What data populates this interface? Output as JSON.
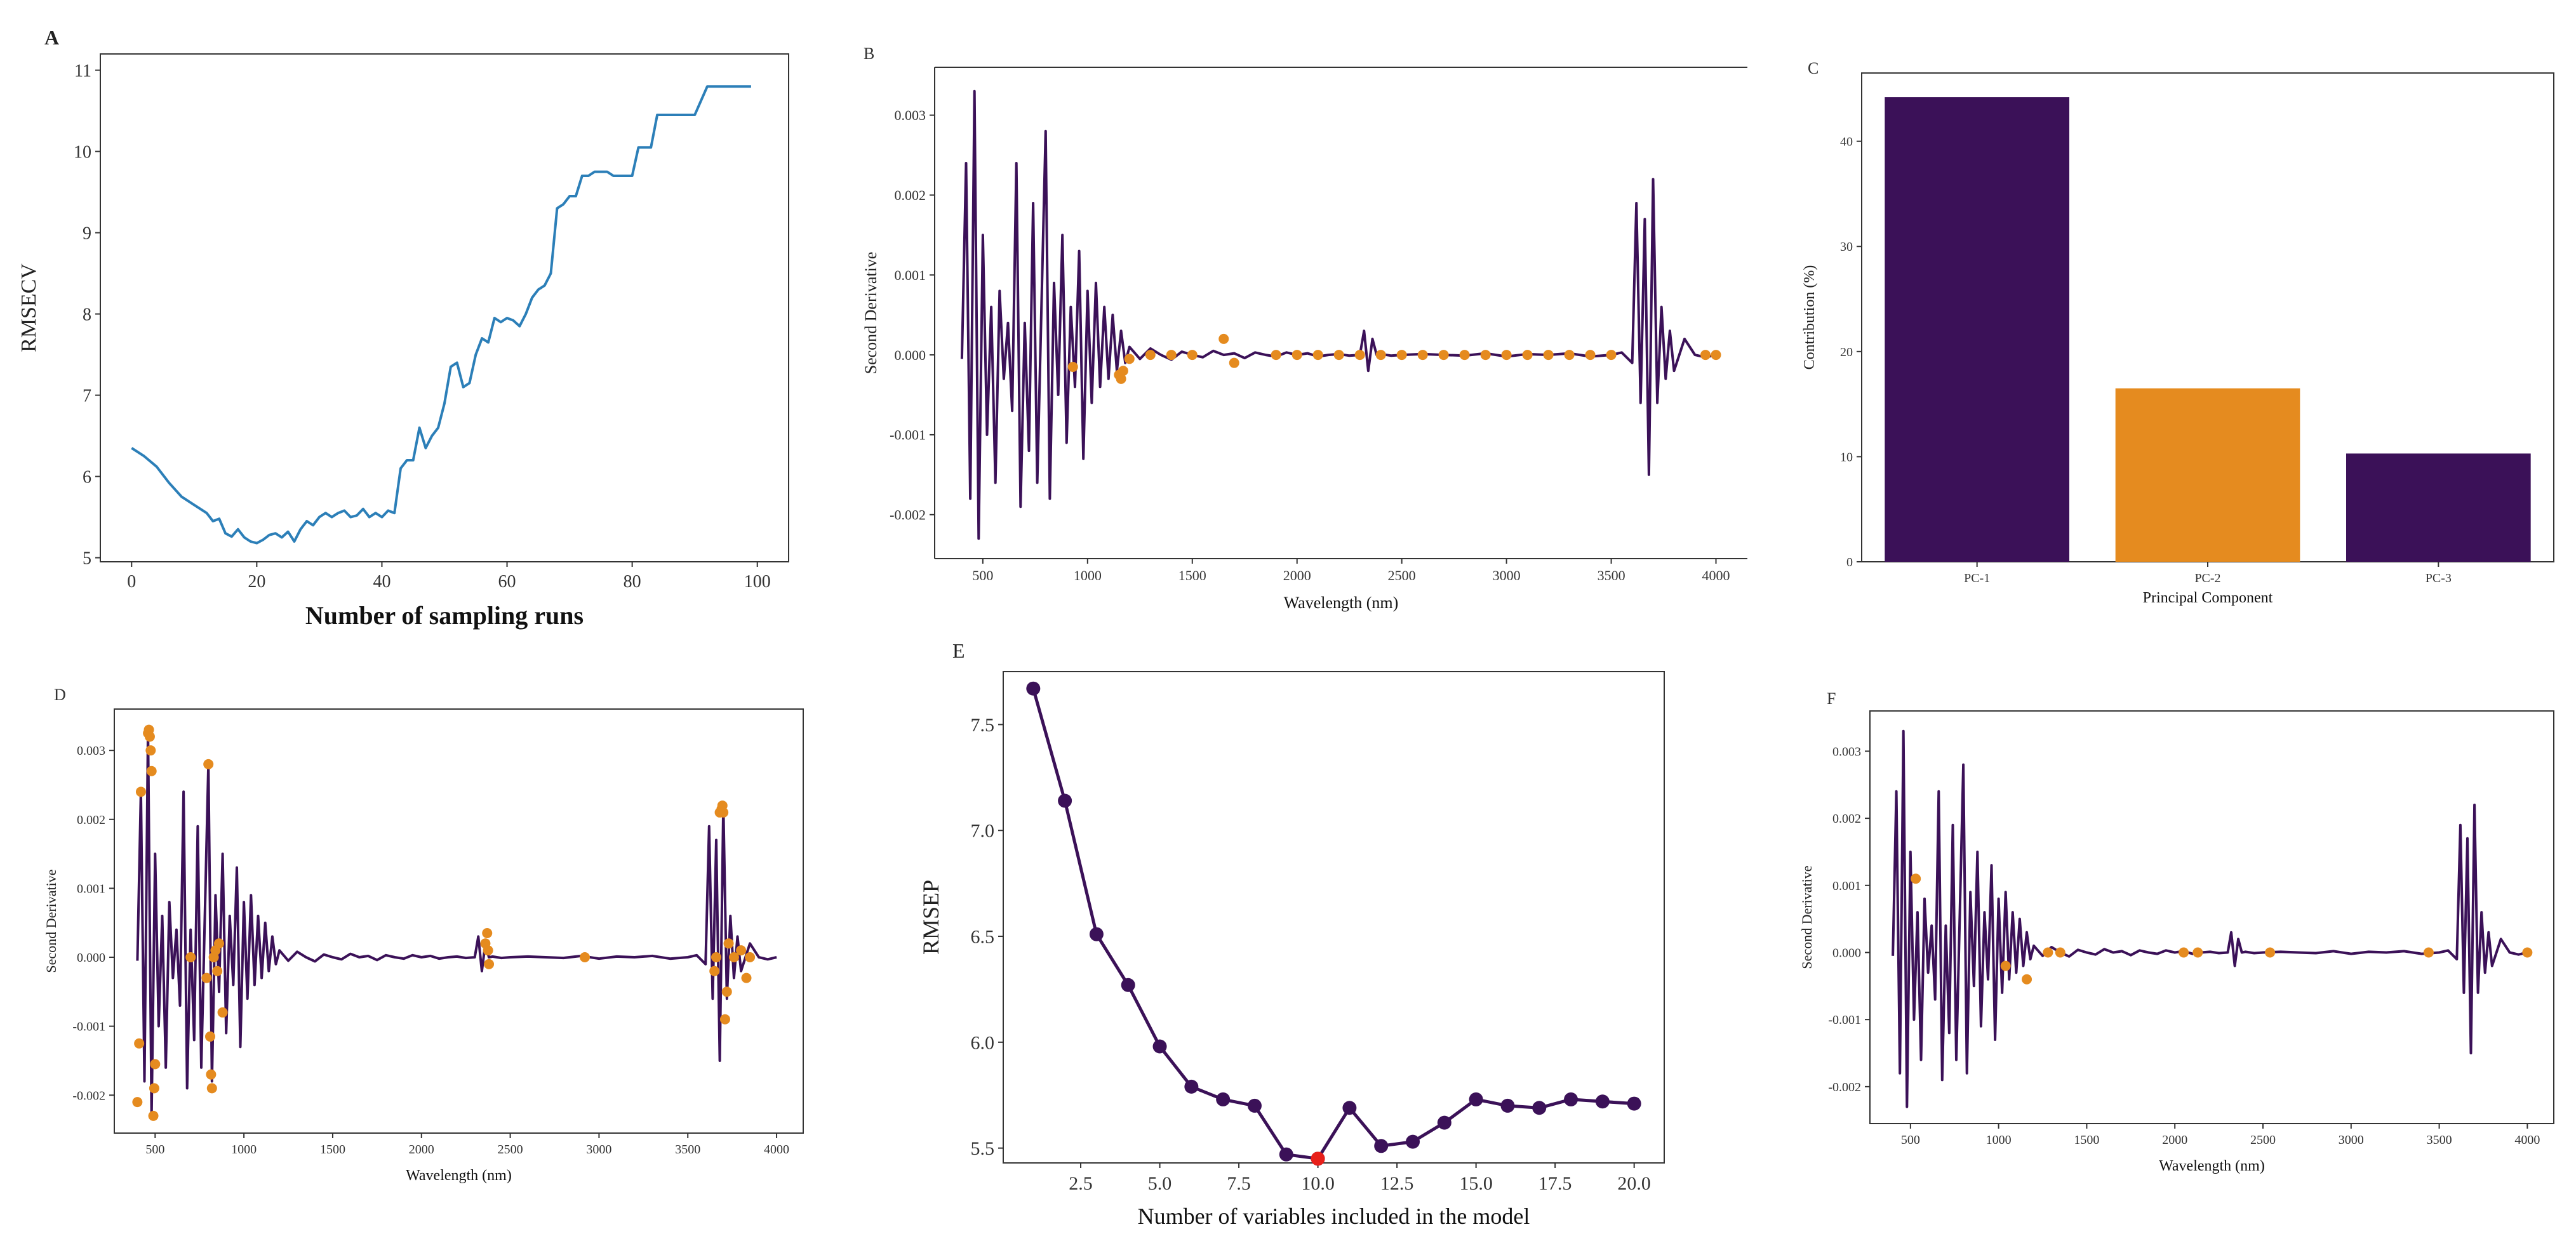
{
  "colors": {
    "purple": "#3b1158",
    "orange": "#e58b1f",
    "blue": "#2c7fb8",
    "red": "#e8201a",
    "axis": "#333333",
    "text": "#333333"
  },
  "chart_data": [
    {
      "panel": "A",
      "type": "line",
      "title": "",
      "xlabel": "Number of sampling runs",
      "ylabel": "RMSECV",
      "xlim": [
        -5,
        105
      ],
      "ylim": [
        4.95,
        11.2
      ],
      "xticks": [
        0,
        20,
        40,
        60,
        80,
        100
      ],
      "yticks": [
        5,
        6,
        7,
        8,
        9,
        10,
        11
      ],
      "series": [
        {
          "name": "RMSECV",
          "x": [
            0,
            2,
            4,
            6,
            8,
            10,
            12,
            13,
            14,
            15,
            16,
            17,
            18,
            19,
            20,
            21,
            22,
            23,
            24,
            25,
            26,
            27,
            28,
            29,
            30,
            31,
            32,
            33,
            34,
            35,
            36,
            37,
            38,
            39,
            40,
            41,
            42,
            43,
            44,
            45,
            46,
            47,
            48,
            49,
            50,
            51,
            52,
            53,
            54,
            55,
            56,
            57,
            58,
            59,
            60,
            61,
            62,
            63,
            64,
            65,
            66,
            67,
            68,
            69,
            70,
            71,
            72,
            73,
            74,
            75,
            76,
            77,
            78,
            79,
            80,
            81,
            82,
            83,
            84,
            85,
            86,
            88,
            90,
            92,
            93,
            94,
            95,
            96,
            97,
            98,
            99
          ],
          "y": [
            6.35,
            6.25,
            6.12,
            5.92,
            5.75,
            5.65,
            5.55,
            5.45,
            5.48,
            5.3,
            5.26,
            5.35,
            5.25,
            5.2,
            5.18,
            5.22,
            5.28,
            5.3,
            5.25,
            5.32,
            5.2,
            5.35,
            5.45,
            5.4,
            5.5,
            5.55,
            5.5,
            5.55,
            5.58,
            5.5,
            5.52,
            5.6,
            5.5,
            5.55,
            5.5,
            5.58,
            5.55,
            6.1,
            6.2,
            6.2,
            6.6,
            6.35,
            6.5,
            6.6,
            6.9,
            7.35,
            7.4,
            7.1,
            7.15,
            7.5,
            7.7,
            7.65,
            7.95,
            7.9,
            7.95,
            7.92,
            7.85,
            8.0,
            8.2,
            8.3,
            8.35,
            8.5,
            9.3,
            9.35,
            9.45,
            9.45,
            9.7,
            9.7,
            9.75,
            9.75,
            9.75,
            9.7,
            9.7,
            9.7,
            9.7,
            10.05,
            10.05,
            10.05,
            10.45,
            10.45,
            10.45,
            10.45,
            10.45,
            10.8,
            10.8,
            10.8,
            10.8,
            10.8,
            10.8,
            10.8,
            10.8
          ]
        }
      ]
    },
    {
      "panel": "B",
      "type": "line",
      "xlabel": "Wavelength (nm)",
      "ylabel": "Second Derivative",
      "xlim": [
        270,
        4150
      ],
      "ylim": [
        -0.00255,
        0.0036
      ],
      "xticks": [
        500,
        1000,
        1500,
        2000,
        2500,
        3000,
        3500,
        4000
      ],
      "yticks": [
        -0.002,
        -0.001,
        0.0,
        0.001,
        0.002,
        0.003
      ],
      "ytick_labels": [
        "-0.002",
        "-0.001",
        "0.000",
        "0.001",
        "0.002",
        "0.003"
      ],
      "markers_note": "selected wavelengths",
      "markers": [
        [
          930,
          -0.00015
        ],
        [
          1150,
          -0.00025
        ],
        [
          1160,
          -0.0003
        ],
        [
          1170,
          -0.0002
        ],
        [
          1200,
          -5e-05
        ],
        [
          1300,
          0.0
        ],
        [
          1400,
          0.0
        ],
        [
          1500,
          0.0
        ],
        [
          1650,
          0.0002
        ],
        [
          1700,
          -0.0001
        ],
        [
          1900,
          0.0
        ],
        [
          2000,
          0.0
        ],
        [
          2100,
          0.0
        ],
        [
          2200,
          0.0
        ],
        [
          2300,
          0.0
        ],
        [
          2400,
          0.0
        ],
        [
          2500,
          0.0
        ],
        [
          2600,
          0.0
        ],
        [
          2700,
          0.0
        ],
        [
          2800,
          0.0
        ],
        [
          2900,
          0.0
        ],
        [
          3000,
          0.0
        ],
        [
          3100,
          0.0
        ],
        [
          3200,
          0.0
        ],
        [
          3300,
          0.0
        ],
        [
          3400,
          0.0
        ],
        [
          3500,
          0.0
        ],
        [
          3950,
          0.0
        ],
        [
          4000,
          0.0
        ]
      ]
    },
    {
      "panel": "C",
      "type": "bar",
      "title": "",
      "xlabel": "Principal Component",
      "ylabel": "Contribution (%)",
      "categories": [
        "PC-1",
        "PC-2",
        "PC-3"
      ],
      "values": [
        44.2,
        16.5,
        10.3
      ],
      "bar_colors": [
        "purple",
        "orange",
        "purple"
      ],
      "ylim": [
        0,
        46.5
      ],
      "yticks": [
        0,
        10,
        20,
        30,
        40
      ]
    },
    {
      "panel": "D",
      "type": "line",
      "xlabel": "Wavelength (nm)",
      "ylabel": "Second Derivative",
      "xlim": [
        270,
        4150
      ],
      "ylim": [
        -0.00255,
        0.0036
      ],
      "xticks": [
        500,
        1000,
        1500,
        2000,
        2500,
        3000,
        3500,
        4000
      ],
      "yticks": [
        -0.002,
        -0.001,
        0.0,
        0.001,
        0.002,
        0.003
      ],
      "ytick_labels": [
        "-0.002",
        "-0.001",
        "0.000",
        "0.001",
        "0.002",
        "0.003"
      ],
      "markers": [
        [
          400,
          -0.0021
        ],
        [
          410,
          -0.00125
        ],
        [
          420,
          0.0024
        ],
        [
          460,
          0.00325
        ],
        [
          465,
          0.0033
        ],
        [
          470,
          0.0032
        ],
        [
          475,
          0.003
        ],
        [
          480,
          0.0027
        ],
        [
          490,
          -0.0023
        ],
        [
          495,
          -0.0019
        ],
        [
          500,
          -0.00155
        ],
        [
          700,
          0.0
        ],
        [
          790,
          -0.0003
        ],
        [
          800,
          0.0028
        ],
        [
          810,
          -0.00115
        ],
        [
          815,
          -0.0017
        ],
        [
          820,
          -0.0019
        ],
        [
          830,
          0.0
        ],
        [
          840,
          0.0001
        ],
        [
          850,
          -0.0002
        ],
        [
          860,
          0.0002
        ],
        [
          880,
          -0.0008
        ],
        [
          2360,
          0.0002
        ],
        [
          2370,
          0.00035
        ],
        [
          2375,
          0.0001
        ],
        [
          2380,
          -0.0001
        ],
        [
          2920,
          0.0
        ],
        [
          3650,
          -0.0002
        ],
        [
          3660,
          0.0
        ],
        [
          3680,
          0.0021
        ],
        [
          3690,
          0.00215
        ],
        [
          3695,
          0.0022
        ],
        [
          3700,
          0.0021
        ],
        [
          3710,
          -0.0009
        ],
        [
          3720,
          -0.0005
        ],
        [
          3730,
          0.0002
        ],
        [
          3760,
          0.0
        ],
        [
          3800,
          0.0001
        ],
        [
          3830,
          -0.0003
        ],
        [
          3850,
          0.0
        ]
      ]
    },
    {
      "panel": "E",
      "type": "line",
      "xlabel": "Number of variables included in the model",
      "ylabel": "RMSEP",
      "xlim": [
        0.05,
        20.95
      ],
      "ylim": [
        5.43,
        7.75
      ],
      "xticks": [
        2.5,
        5.0,
        7.5,
        10.0,
        12.5,
        15.0,
        17.5,
        20.0
      ],
      "xtick_labels": [
        "2.5",
        "5.0",
        "7.5",
        "10.0",
        "12.5",
        "15.0",
        "17.5",
        "20.0"
      ],
      "yticks": [
        5.5,
        6.0,
        6.5,
        7.0,
        7.5
      ],
      "ytick_labels": [
        "5.5",
        "6.0",
        "6.5",
        "7.0",
        "7.5"
      ],
      "series": [
        {
          "name": "RMSEP",
          "x": [
            1,
            2,
            3,
            4,
            5,
            6,
            7,
            8,
            9,
            10,
            11,
            12,
            13,
            14,
            15,
            16,
            17,
            18,
            19,
            20
          ],
          "y": [
            7.67,
            7.14,
            6.51,
            6.27,
            5.98,
            5.79,
            5.73,
            5.7,
            5.47,
            5.45,
            5.69,
            5.51,
            5.53,
            5.62,
            5.73,
            5.7,
            5.69,
            5.73,
            5.72,
            5.71
          ]
        }
      ],
      "highlight": {
        "x": 10,
        "y": 5.45
      }
    },
    {
      "panel": "F",
      "type": "line",
      "xlabel": "Wavelength (nm)",
      "ylabel": "Second Derivative",
      "xlim": [
        270,
        4150
      ],
      "ylim": [
        -0.00255,
        0.0036
      ],
      "xticks": [
        500,
        1000,
        1500,
        2000,
        2500,
        3000,
        3500,
        4000
      ],
      "yticks": [
        -0.002,
        -0.001,
        0.0,
        0.001,
        0.002,
        0.003
      ],
      "ytick_labels": [
        "-0.002",
        "-0.001",
        "0.000",
        "0.001",
        "0.002",
        "0.003"
      ],
      "markers": [
        [
          530,
          0.0011
        ],
        [
          1040,
          -0.0002
        ],
        [
          1160,
          -0.0004
        ],
        [
          1280,
          0.0
        ],
        [
          1350,
          0.0
        ],
        [
          2050,
          0.0
        ],
        [
          2130,
          0.0
        ],
        [
          2540,
          0.0
        ],
        [
          3440,
          0.0
        ],
        [
          4000,
          0.0
        ]
      ]
    }
  ],
  "spectrum": {
    "x": [
      400,
      420,
      440,
      460,
      480,
      500,
      520,
      540,
      560,
      580,
      600,
      620,
      640,
      660,
      680,
      700,
      720,
      740,
      760,
      780,
      800,
      820,
      840,
      860,
      880,
      900,
      920,
      940,
      960,
      980,
      1000,
      1020,
      1040,
      1060,
      1080,
      1100,
      1120,
      1140,
      1160,
      1180,
      1200,
      1250,
      1300,
      1350,
      1400,
      1450,
      1500,
      1550,
      1600,
      1650,
      1700,
      1750,
      1800,
      1850,
      1900,
      1950,
      2000,
      2050,
      2100,
      2150,
      2200,
      2250,
      2300,
      2320,
      2340,
      2360,
      2380,
      2400,
      2450,
      2500,
      2600,
      2700,
      2800,
      2900,
      3000,
      3100,
      3200,
      3300,
      3400,
      3500,
      3550,
      3600,
      3620,
      3640,
      3660,
      3680,
      3700,
      3720,
      3740,
      3760,
      3780,
      3800,
      3850,
      3900,
      3950,
      4000
    ],
    "y": [
      -5e-05,
      0.0024,
      -0.0018,
      0.0033,
      -0.0023,
      0.0015,
      -0.001,
      0.0006,
      -0.0016,
      0.0008,
      -0.0003,
      0.0004,
      -0.0007,
      0.0024,
      -0.0019,
      0.0004,
      -0.0012,
      0.0019,
      -0.0016,
      0.0006,
      0.0028,
      -0.0018,
      0.0009,
      -0.0005,
      0.0015,
      -0.0011,
      0.0006,
      -0.0004,
      0.0013,
      -0.0013,
      0.0008,
      -0.0006,
      0.0009,
      -0.0004,
      0.0006,
      -0.0003,
      0.0005,
      -0.0002,
      0.0003,
      -0.0001,
      0.0001,
      -5e-05,
      8e-05,
      0.0,
      -6e-05,
      4e-05,
      0.0,
      -3e-05,
      5e-05,
      0.0,
      2e-05,
      -4e-05,
      3e-05,
      0.0,
      -2e-05,
      3e-05,
      0.0,
      2e-05,
      -2e-05,
      0.0,
      1e-05,
      -1e-05,
      0.0,
      0.0003,
      -0.0002,
      0.0002,
      0.0,
      1e-05,
      -1e-05,
      0.0,
      1e-05,
      0.0,
      -1e-05,
      2e-05,
      -2e-05,
      1e-05,
      0.0,
      2e-05,
      -2e-05,
      0.0,
      3e-05,
      -0.0001,
      0.0019,
      -0.0006,
      0.0017,
      -0.0015,
      0.0022,
      -0.0006,
      0.0006,
      -0.0003,
      0.0003,
      -0.0002,
      0.0002,
      0.0,
      -3e-05,
      0.0
    ]
  },
  "panel_labels": {
    "A": "A",
    "B": "B",
    "C": "C",
    "D": "D",
    "E": "E",
    "F": "F"
  }
}
